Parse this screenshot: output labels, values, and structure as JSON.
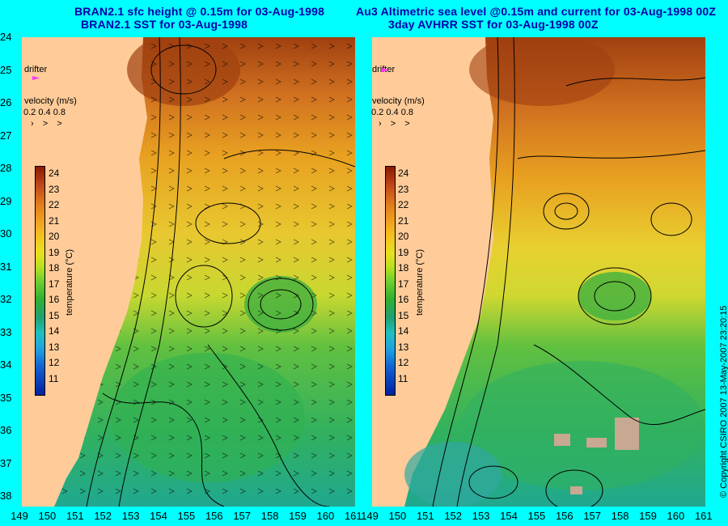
{
  "left_panel": {
    "title_line1": "BRAN2.1 sfc height @ 0.15m for 03-Aug-1998",
    "title_line2": "BRAN2.1 SST for 03-Aug-1998"
  },
  "right_panel": {
    "title_line1": "Au3 Altimetric sea level  @0.15m and current for 03-Aug-1998 00Z",
    "title_line2": "3day AVHRR SST for 03-Aug-1998 00Z"
  },
  "latitude_labels": [
    "24",
    "25",
    "26",
    "27",
    "28",
    "29",
    "30",
    "31",
    "32",
    "33",
    "34",
    "35",
    "36",
    "37",
    "38"
  ],
  "longitude_labels": [
    "149",
    "150",
    "151",
    "152",
    "153",
    "154",
    "155",
    "156",
    "157",
    "158",
    "159",
    "160",
    "161"
  ],
  "legend": {
    "drifter_label": "drifter",
    "velocity_title": "velocity (m/s)",
    "velocity_values": "0.2 0.4 0.8",
    "velocity_arrows": "› > >"
  },
  "colorbar": {
    "title": "temperature (°C)",
    "ticks": [
      "24",
      "23",
      "22",
      "21",
      "20",
      "19",
      "18",
      "17",
      "16",
      "15",
      "14",
      "13",
      "12",
      "11"
    ]
  },
  "copyright": "© Copyright CSIRO 2007  13-May-2007 23:20:15",
  "colors": {
    "background": "#00ffff",
    "title": "#0000aa",
    "land": "#ffcc99",
    "drifter": "#ff33ff"
  }
}
